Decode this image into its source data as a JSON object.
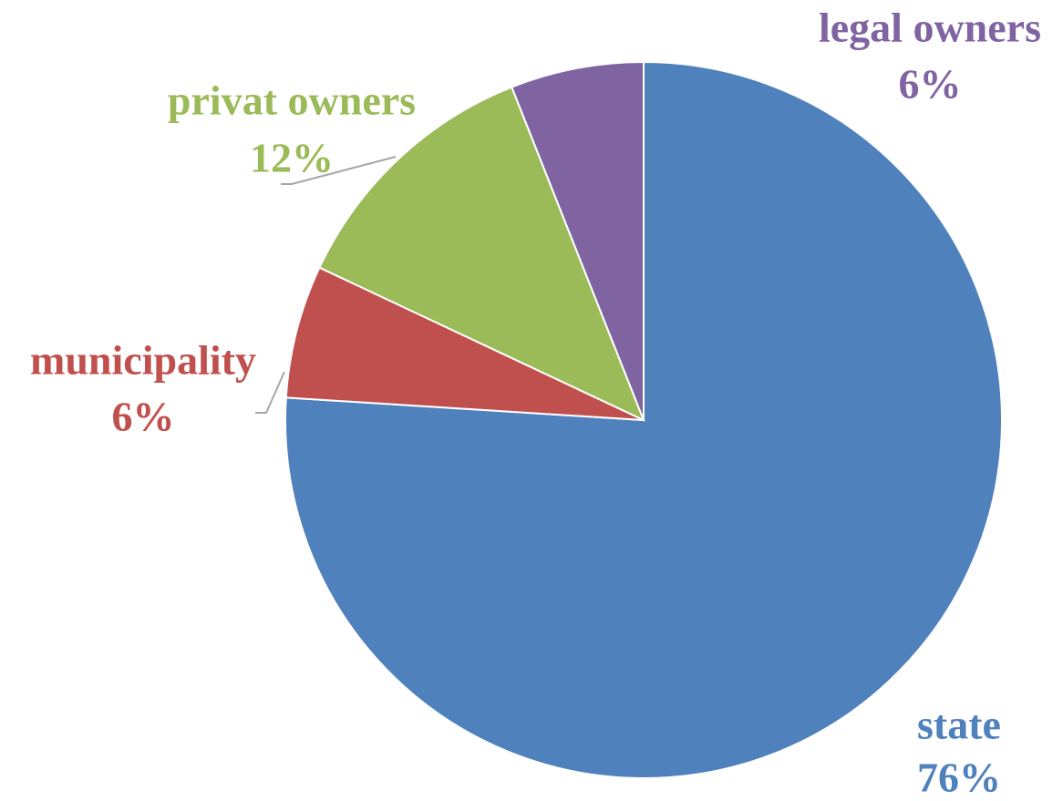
{
  "chart_data": {
    "type": "pie",
    "categories": [
      "state",
      "municipality",
      "privat owners",
      "legal owners"
    ],
    "values": [
      76,
      6,
      12,
      6
    ],
    "value_labels": [
      "76%",
      "6%",
      "12%",
      "6%"
    ],
    "colors": [
      "#4f81bd",
      "#c0504d",
      "#9bbb59",
      "#8064a2"
    ]
  }
}
